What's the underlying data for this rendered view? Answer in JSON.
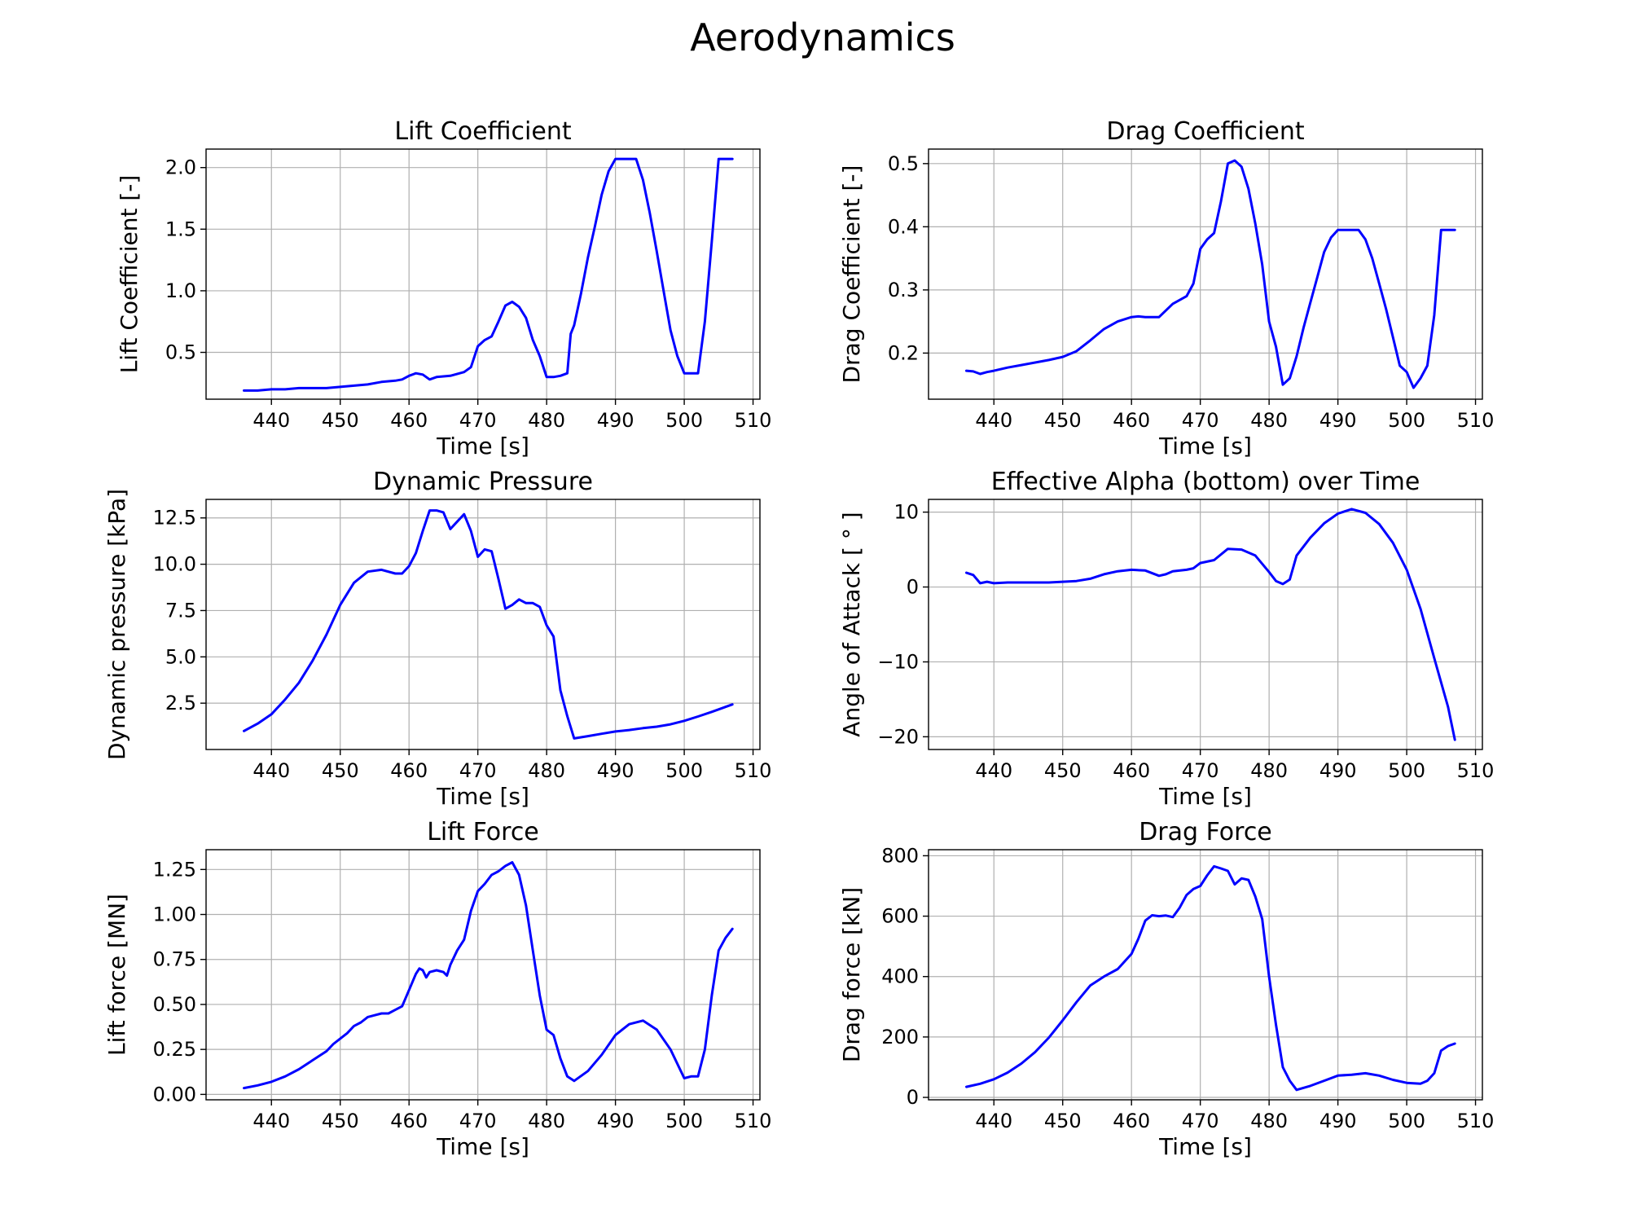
{
  "figure": {
    "title": "Aerodynamics"
  },
  "chart_data": [
    {
      "type": "line",
      "title": "Lift Coefficient",
      "xlabel": "Time [s]",
      "ylabel": "Lift Coefficient [-]",
      "xlim": [
        430.5,
        511
      ],
      "ylim": [
        0.12,
        2.15
      ],
      "xticks": [
        440,
        450,
        460,
        470,
        480,
        490,
        500,
        510
      ],
      "xtick_labels": [
        "440",
        "450",
        "460",
        "470",
        "480",
        "490",
        "500",
        "510"
      ],
      "yticks": [
        0.5,
        1.0,
        1.5,
        2.0
      ],
      "ytick_labels": [
        "0.5",
        "1.0",
        "1.5",
        "2.0"
      ],
      "grid": true,
      "color": "#0000ff",
      "x": [
        436,
        438,
        440,
        442,
        444,
        446,
        448,
        450,
        452,
        454,
        456,
        458,
        459,
        460,
        461,
        462,
        463,
        464,
        466,
        468,
        469,
        470,
        471,
        472,
        473,
        474,
        475,
        476,
        477,
        478,
        479,
        480,
        481,
        482,
        483,
        483.5,
        484,
        485,
        486,
        487,
        488,
        489,
        490,
        491,
        492,
        493,
        494,
        495,
        496,
        497,
        498,
        499,
        500,
        501,
        502,
        503,
        504,
        505,
        506,
        507
      ],
      "y": [
        0.19,
        0.19,
        0.2,
        0.2,
        0.21,
        0.21,
        0.21,
        0.22,
        0.23,
        0.24,
        0.26,
        0.27,
        0.28,
        0.31,
        0.33,
        0.32,
        0.28,
        0.3,
        0.31,
        0.34,
        0.38,
        0.55,
        0.6,
        0.63,
        0.75,
        0.88,
        0.91,
        0.87,
        0.78,
        0.6,
        0.47,
        0.3,
        0.3,
        0.31,
        0.33,
        0.65,
        0.72,
        0.98,
        1.27,
        1.52,
        1.78,
        1.97,
        2.07,
        2.07,
        2.07,
        2.07,
        1.9,
        1.63,
        1.32,
        1.0,
        0.68,
        0.47,
        0.33,
        0.33,
        0.33,
        0.75,
        1.4,
        2.07,
        2.07,
        2.07
      ]
    },
    {
      "type": "line",
      "title": "Drag Coefficient",
      "xlabel": "Time [s]",
      "ylabel": "Drag Coefficient [-]",
      "xlim": [
        430.5,
        511
      ],
      "ylim": [
        0.127,
        0.523
      ],
      "xticks": [
        440,
        450,
        460,
        470,
        480,
        490,
        500,
        510
      ],
      "xtick_labels": [
        "440",
        "450",
        "460",
        "470",
        "480",
        "490",
        "500",
        "510"
      ],
      "yticks": [
        0.2,
        0.3,
        0.4,
        0.5
      ],
      "ytick_labels": [
        "0.2",
        "0.3",
        "0.4",
        "0.5"
      ],
      "grid": true,
      "color": "#0000ff",
      "x": [
        436,
        437,
        438,
        439,
        440,
        442,
        444,
        446,
        448,
        450,
        452,
        454,
        456,
        458,
        460,
        461,
        462,
        464,
        466,
        468,
        469,
        470,
        471,
        472,
        473,
        474,
        475,
        476,
        477,
        478,
        479,
        480,
        481,
        482,
        483,
        484,
        485,
        486,
        487,
        488,
        489,
        490,
        491,
        492,
        493,
        494,
        495,
        496,
        497,
        498,
        499,
        500,
        501,
        502,
        503,
        504,
        505,
        506,
        507
      ],
      "y": [
        0.172,
        0.171,
        0.167,
        0.17,
        0.172,
        0.177,
        0.181,
        0.185,
        0.189,
        0.194,
        0.203,
        0.22,
        0.238,
        0.25,
        0.257,
        0.258,
        0.257,
        0.257,
        0.278,
        0.29,
        0.31,
        0.365,
        0.38,
        0.39,
        0.44,
        0.5,
        0.505,
        0.495,
        0.46,
        0.405,
        0.34,
        0.25,
        0.21,
        0.15,
        0.16,
        0.195,
        0.24,
        0.28,
        0.32,
        0.36,
        0.383,
        0.395,
        0.395,
        0.395,
        0.395,
        0.38,
        0.35,
        0.31,
        0.27,
        0.225,
        0.18,
        0.17,
        0.145,
        0.16,
        0.18,
        0.26,
        0.395,
        0.395,
        0.395
      ]
    },
    {
      "type": "line",
      "title": "Dynamic Pressure",
      "xlabel": "Time [s]",
      "ylabel": "Dynamic pressure [kPa]",
      "xlim": [
        430.5,
        511
      ],
      "ylim": [
        0,
        13.5
      ],
      "xticks": [
        440,
        450,
        460,
        470,
        480,
        490,
        500,
        510
      ],
      "xtick_labels": [
        "440",
        "450",
        "460",
        "470",
        "480",
        "490",
        "500",
        "510"
      ],
      "yticks": [
        2.5,
        5.0,
        7.5,
        10.0,
        12.5
      ],
      "ytick_labels": [
        "2.5",
        "5.0",
        "7.5",
        "10.0",
        "12.5"
      ],
      "grid": true,
      "color": "#0000ff",
      "x": [
        436,
        438,
        440,
        442,
        444,
        446,
        448,
        450,
        452,
        454,
        456,
        458,
        459,
        460,
        461,
        462,
        463,
        464,
        465,
        466,
        467,
        468,
        469,
        470,
        471,
        472,
        473,
        474,
        475,
        476,
        477,
        478,
        479,
        480,
        481,
        482,
        483,
        484,
        486,
        488,
        490,
        492,
        494,
        496,
        498,
        500,
        502,
        504,
        506,
        507
      ],
      "y": [
        1.0,
        1.4,
        1.9,
        2.7,
        3.6,
        4.8,
        6.2,
        7.8,
        9.0,
        9.6,
        9.7,
        9.5,
        9.5,
        9.9,
        10.6,
        11.8,
        12.9,
        12.9,
        12.8,
        11.9,
        12.3,
        12.7,
        11.8,
        10.4,
        10.8,
        10.7,
        9.2,
        7.6,
        7.8,
        8.1,
        7.9,
        7.9,
        7.7,
        6.7,
        6.1,
        3.2,
        1.8,
        0.6,
        0.72,
        0.85,
        0.97,
        1.05,
        1.15,
        1.23,
        1.36,
        1.55,
        1.78,
        2.03,
        2.3,
        2.43
      ]
    },
    {
      "type": "line",
      "title": "Effective Alpha (bottom) over Time",
      "xlabel": "Time [s]",
      "ylabel": "Angle of Attack [ ° ]",
      "xlim": [
        430.5,
        511
      ],
      "ylim": [
        -21.7,
        11.7
      ],
      "xticks": [
        440,
        450,
        460,
        470,
        480,
        490,
        500,
        510
      ],
      "xtick_labels": [
        "440",
        "450",
        "460",
        "470",
        "480",
        "490",
        "500",
        "510"
      ],
      "yticks": [
        -20,
        -10,
        0,
        10
      ],
      "ytick_labels": [
        "−20",
        "−10",
        "0",
        "10"
      ],
      "grid": true,
      "color": "#0000ff",
      "x": [
        436,
        437,
        438,
        439,
        440,
        442,
        444,
        446,
        448,
        450,
        452,
        454,
        456,
        458,
        460,
        462,
        464,
        465,
        466,
        468,
        469,
        470,
        472,
        474,
        476,
        478,
        480,
        481,
        482,
        483,
        484,
        486,
        488,
        490,
        492,
        494,
        496,
        498,
        500,
        502,
        504,
        506,
        507
      ],
      "y": [
        1.9,
        1.6,
        0.5,
        0.7,
        0.5,
        0.6,
        0.6,
        0.6,
        0.6,
        0.7,
        0.8,
        1.1,
        1.7,
        2.1,
        2.3,
        2.2,
        1.5,
        1.7,
        2.1,
        2.3,
        2.5,
        3.2,
        3.6,
        5.1,
        5.0,
        4.2,
        2.0,
        0.8,
        0.4,
        1.0,
        4.2,
        6.6,
        8.5,
        9.8,
        10.4,
        9.9,
        8.4,
        5.9,
        2.3,
        -2.9,
        -9.5,
        -16.0,
        -20.4
      ]
    },
    {
      "type": "line",
      "title": "Lift Force",
      "xlabel": "Time [s]",
      "ylabel": "Lift force [MN]",
      "xlim": [
        430.5,
        511
      ],
      "ylim": [
        -0.03,
        1.36
      ],
      "xticks": [
        440,
        450,
        460,
        470,
        480,
        490,
        500,
        510
      ],
      "xtick_labels": [
        "440",
        "450",
        "460",
        "470",
        "480",
        "490",
        "500",
        "510"
      ],
      "yticks": [
        0.0,
        0.25,
        0.5,
        0.75,
        1.0,
        1.25
      ],
      "ytick_labels": [
        "0.00",
        "0.25",
        "0.50",
        "0.75",
        "1.00",
        "1.25"
      ],
      "grid": true,
      "color": "#0000ff",
      "x": [
        436,
        438,
        440,
        442,
        444,
        446,
        448,
        449,
        450,
        451,
        452,
        453,
        454,
        455,
        456,
        457,
        458,
        459,
        460,
        461,
        461.5,
        462,
        462.5,
        463,
        464,
        465,
        465.5,
        466,
        467,
        468,
        469,
        470,
        471,
        472,
        473,
        474,
        475,
        476,
        477,
        478,
        479,
        480,
        481,
        482,
        483,
        484,
        486,
        488,
        490,
        492,
        494,
        496,
        498,
        500,
        501,
        502,
        503,
        504,
        505,
        506,
        507
      ],
      "y": [
        0.035,
        0.05,
        0.07,
        0.1,
        0.14,
        0.19,
        0.24,
        0.28,
        0.31,
        0.34,
        0.38,
        0.4,
        0.43,
        0.44,
        0.45,
        0.45,
        0.47,
        0.49,
        0.58,
        0.67,
        0.7,
        0.69,
        0.65,
        0.68,
        0.69,
        0.68,
        0.66,
        0.72,
        0.8,
        0.86,
        1.02,
        1.13,
        1.17,
        1.22,
        1.24,
        1.27,
        1.29,
        1.22,
        1.05,
        0.8,
        0.55,
        0.36,
        0.33,
        0.2,
        0.1,
        0.075,
        0.13,
        0.22,
        0.33,
        0.39,
        0.41,
        0.36,
        0.25,
        0.09,
        0.1,
        0.1,
        0.25,
        0.55,
        0.8,
        0.87,
        0.92
      ]
    },
    {
      "type": "line",
      "title": "Drag Force",
      "xlabel": "Time [s]",
      "ylabel": "Drag force [kN]",
      "xlim": [
        430.5,
        511
      ],
      "ylim": [
        -8,
        820
      ],
      "xticks": [
        440,
        450,
        460,
        470,
        480,
        490,
        500,
        510
      ],
      "xtick_labels": [
        "440",
        "450",
        "460",
        "470",
        "480",
        "490",
        "500",
        "510"
      ],
      "yticks": [
        0,
        200,
        400,
        600,
        800
      ],
      "ytick_labels": [
        "0",
        "200",
        "400",
        "600",
        "800"
      ],
      "grid": true,
      "color": "#0000ff",
      "x": [
        436,
        438,
        440,
        442,
        444,
        446,
        448,
        450,
        452,
        454,
        456,
        458,
        460,
        461,
        462,
        463,
        464,
        465,
        466,
        467,
        468,
        469,
        470,
        471,
        472,
        473,
        474,
        475,
        476,
        477,
        478,
        479,
        480,
        481,
        482,
        483,
        484,
        486,
        488,
        490,
        492,
        494,
        496,
        498,
        500,
        502,
        503,
        504,
        505,
        506,
        507
      ],
      "y": [
        35,
        45,
        60,
        82,
        112,
        150,
        198,
        255,
        315,
        370,
        400,
        425,
        475,
        525,
        585,
        603,
        600,
        602,
        597,
        628,
        670,
        690,
        700,
        735,
        765,
        758,
        750,
        705,
        725,
        720,
        665,
        590,
        400,
        240,
        100,
        55,
        25,
        38,
        55,
        72,
        75,
        80,
        72,
        58,
        48,
        45,
        55,
        80,
        155,
        170,
        178
      ]
    }
  ]
}
